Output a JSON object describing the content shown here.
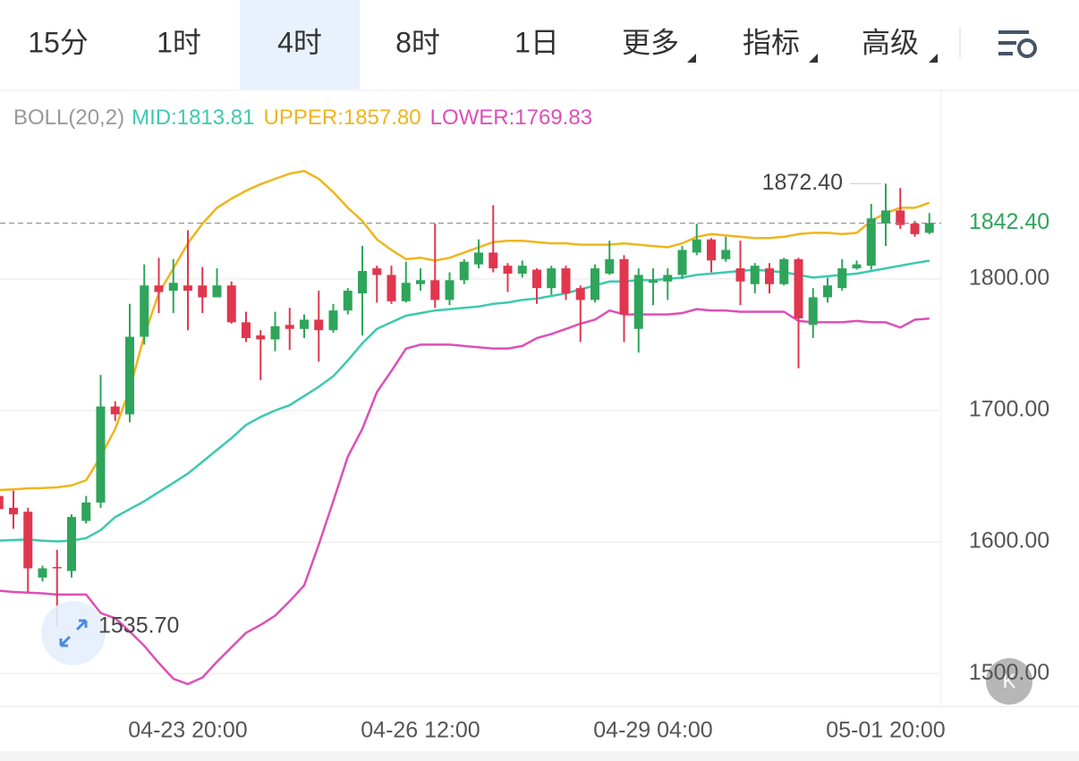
{
  "tabs": {
    "items": [
      "15分",
      "1时",
      "4时",
      "8时",
      "1日",
      "更多",
      "指标",
      "高级"
    ],
    "active": 2
  },
  "chart_data": {
    "type": "candlestick",
    "indicator": "BOLL(20,2)",
    "categories": [
      null,
      null,
      null,
      null,
      null,
      null,
      null,
      null,
      null,
      null,
      null,
      null,
      null,
      "04-23 20:00",
      null,
      null,
      null,
      null,
      null,
      null,
      null,
      null,
      null,
      null,
      null,
      null,
      null,
      null,
      null,
      "04-26 12:00",
      null,
      null,
      null,
      null,
      null,
      null,
      null,
      null,
      null,
      null,
      null,
      null,
      null,
      null,
      null,
      "04-29 04:00",
      null,
      null,
      null,
      null,
      null,
      null,
      null,
      null,
      null,
      null,
      null,
      null,
      null,
      null,
      null,
      "05-01 20:00",
      null,
      null,
      null
    ],
    "open": [
      1635,
      1626,
      1623,
      1573,
      1581,
      1578,
      1616,
      1630,
      1703,
      1697,
      1756,
      1795,
      1791,
      1795,
      1795,
      1786,
      1795,
      1767,
      1757,
      1754,
      1765,
      1762,
      1769,
      1761,
      1776,
      1789,
      1808,
      1803,
      1783,
      1796,
      1799,
      1784,
      1799,
      1811,
      1820,
      1810,
      1804,
      1807,
      1793,
      1808,
      1793,
      1784,
      1804,
      1815,
      1762,
      1797,
      1798,
      1803,
      1820,
      1830,
      1815,
      1808,
      1796,
      1808,
      1796,
      1815,
      1765,
      1786,
      1793,
      1808,
      1810,
      1842,
      1852,
      1842,
      1835
    ],
    "close": [
      1625,
      1621,
      1580,
      1580,
      1580,
      1619,
      1630,
      1703,
      1697,
      1756,
      1795,
      1790,
      1797,
      1791,
      1786,
      1795,
      1767,
      1755,
      1754,
      1764,
      1762,
      1769,
      1761,
      1776,
      1791,
      1806,
      1803,
      1783,
      1797,
      1799,
      1784,
      1799,
      1813,
      1820,
      1808,
      1804,
      1810,
      1793,
      1808,
      1789,
      1784,
      1808,
      1815,
      1773,
      1803,
      1799,
      1803,
      1822,
      1830,
      1814,
      1822,
      1798,
      1810,
      1796,
      1815,
      1770,
      1786,
      1795,
      1808,
      1811,
      1846,
      1852,
      1841,
      1834,
      1842.4
    ],
    "high": [
      1640,
      1639,
      1626,
      1582,
      1594,
      1621,
      1635,
      1727,
      1707,
      1781,
      1811,
      1816,
      1815,
      1837,
      1809,
      1808,
      1798,
      1775,
      1761,
      1775,
      1778,
      1773,
      1791,
      1781,
      1793,
      1825,
      1810,
      1810,
      1813,
      1808,
      1842,
      1805,
      1815,
      1830,
      1856,
      1812,
      1814,
      1808,
      1810,
      1810,
      1795,
      1811,
      1829,
      1818,
      1808,
      1808,
      1808,
      1825,
      1842,
      1831,
      1832,
      1829,
      1812,
      1812,
      1816,
      1816,
      1793,
      1801,
      1815,
      1814,
      1857,
      1872.4,
      1869,
      1844,
      1850
    ],
    "low": [
      1615,
      1610,
      1562,
      1570,
      1535.7,
      1573,
      1614,
      1626,
      1692,
      1691,
      1750,
      1774,
      1774,
      1761,
      1774,
      1786,
      1766,
      1752,
      1723,
      1745,
      1746,
      1755,
      1737,
      1759,
      1773,
      1757,
      1782,
      1781,
      1782,
      1791,
      1778,
      1780,
      1796,
      1808,
      1805,
      1790,
      1801,
      1781,
      1788,
      1784,
      1752,
      1782,
      1803,
      1752,
      1744,
      1780,
      1784,
      1800,
      1818,
      1805,
      1813,
      1780,
      1789,
      1789,
      1795,
      1732,
      1755,
      1782,
      1791,
      1807,
      1807,
      1825,
      1838,
      1832,
      1834
    ],
    "up_color": "#2ea55a",
    "down_color": "#e0374e",
    "series": [
      {
        "name": "MID:1813.81",
        "color": "#3cc9b0",
        "values": [
          1601,
          1601.5,
          1602,
          1601,
          1600.5,
          1601,
          1603,
          1609,
          1619,
          1625,
          1631,
          1638,
          1645,
          1652,
          1661,
          1670,
          1679,
          1689,
          1695,
          1700,
          1704,
          1711,
          1718,
          1726,
          1738,
          1751,
          1762,
          1767,
          1772,
          1774,
          1776,
          1777,
          1778,
          1779,
          1781,
          1782,
          1784,
          1785,
          1787,
          1789,
          1792,
          1795,
          1798,
          1798,
          1799,
          1799,
          1800,
          1801,
          1803,
          1804,
          1805,
          1806,
          1807,
          1806,
          1805,
          1803,
          1801,
          1802,
          1803,
          1804,
          1806,
          1808,
          1810,
          1812,
          1813.81
        ]
      },
      {
        "name": "UPPER:1857.80",
        "color": "#f0b51c",
        "values": [
          1639.5,
          1640,
          1640.8,
          1641,
          1641.5,
          1643,
          1647,
          1665,
          1686,
          1716,
          1757,
          1789,
          1808,
          1827,
          1842,
          1854,
          1861,
          1867,
          1872,
          1876,
          1880,
          1882,
          1876,
          1866,
          1854,
          1844,
          1830,
          1822,
          1815,
          1816,
          1814,
          1816,
          1820,
          1824,
          1828,
          1829,
          1829,
          1828,
          1827,
          1827,
          1826,
          1826,
          1826,
          1827,
          1826,
          1825,
          1824,
          1827,
          1832,
          1834,
          1833,
          1832,
          1831,
          1831,
          1832,
          1834,
          1835,
          1835,
          1834,
          1835,
          1844,
          1850,
          1854,
          1854,
          1857.8
        ]
      },
      {
        "name": "LOWER:1769.83",
        "color": "#dd4fb8",
        "values": [
          1563,
          1562,
          1561.5,
          1561,
          1560,
          1560,
          1560,
          1546,
          1542,
          1532,
          1521,
          1508,
          1496,
          1492,
          1497,
          1509,
          1520,
          1531,
          1537,
          1544,
          1555,
          1567,
          1598,
          1631,
          1665,
          1686,
          1714,
          1730,
          1747,
          1750,
          1750,
          1750,
          1749,
          1748,
          1747,
          1747,
          1749,
          1755,
          1758,
          1762,
          1766,
          1769,
          1776,
          1773,
          1773,
          1773,
          1773,
          1774,
          1777,
          1776,
          1776,
          1775,
          1775,
          1775,
          1775,
          1768,
          1767,
          1767,
          1767,
          1768,
          1767,
          1767,
          1763,
          1769,
          1769.83
        ]
      }
    ],
    "ylim": [
      1475,
      1944
    ],
    "yticks": [
      {
        "value": 1500,
        "label": "1500.00"
      },
      {
        "value": 1600,
        "label": "1600.00"
      },
      {
        "value": 1700,
        "label": "1700.00"
      },
      {
        "value": 1800,
        "label": "1800.00"
      }
    ],
    "grid": true,
    "last_price": {
      "value": 1842.4,
      "label": "1842.40"
    },
    "annotations": [
      {
        "value": 1872.4,
        "label": "1872.40"
      },
      {
        "value": 1535.7,
        "label": "1535.70"
      }
    ]
  }
}
